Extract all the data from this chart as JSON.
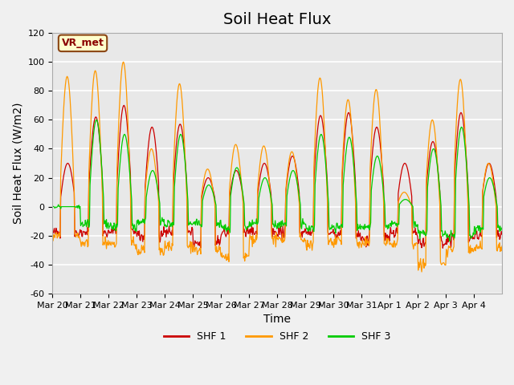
{
  "title": "Soil Heat Flux",
  "ylabel": "Soil Heat Flux (W/m2)",
  "xlabel": "Time",
  "ylim": [
    -60,
    120
  ],
  "yticks": [
    -60,
    -40,
    -20,
    0,
    20,
    40,
    60,
    80,
    100,
    120
  ],
  "x_tick_labels": [
    "Mar 20",
    "Mar 21",
    "Mar 22",
    "Mar 23",
    "Mar 24",
    "Mar 25",
    "Mar 26",
    "Mar 27",
    "Mar 28",
    "Mar 29",
    "Mar 30",
    "Mar 31",
    "Apr 1",
    "Apr 2",
    "Apr 3",
    "Apr 4"
  ],
  "legend_labels": [
    "SHF 1",
    "SHF 2",
    "SHF 3"
  ],
  "shf1_color": "#cc0000",
  "shf2_color": "#ff9900",
  "shf3_color": "#00cc00",
  "box_label": "VR_met",
  "plot_bg_color": "#e8e8e8",
  "fig_bg_color": "#f0f0f0",
  "title_fontsize": 14,
  "axis_label_fontsize": 10,
  "tick_fontsize": 8
}
